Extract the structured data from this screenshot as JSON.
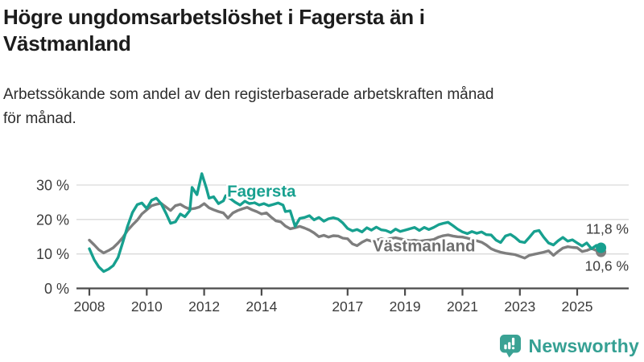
{
  "header": {
    "title_lines": [
      "Högre ungdomsarbetslöshet i Fagersta än i",
      "Västmanland"
    ],
    "subtitle_lines": [
      "Arbetssökande som andel av den registerbaserade arbetskraften månad",
      "för månad."
    ]
  },
  "chart_data": {
    "type": "line",
    "title": "Högre ungdomsarbetslöshet i Fagersta än i Västmanland",
    "subtitle": "Arbetssökande som andel av den registerbaserade arbetskraften månad för månad.",
    "xlabel": "",
    "ylabel": "",
    "unit": "%",
    "grid": "horizontal",
    "legend_position": "inline-labels",
    "xlim": [
      2007.55,
      2026.77
    ],
    "ylim": [
      0,
      35.5
    ],
    "x_axis": {
      "ticks": [
        2008,
        2010,
        2012,
        2014,
        2017,
        2019,
        2021,
        2023,
        2025
      ]
    },
    "y_axis": {
      "ticks": [
        {
          "value": 0,
          "label": "0 %"
        },
        {
          "value": 10,
          "label": "10 %"
        },
        {
          "value": 20,
          "label": "20 %"
        },
        {
          "value": 30,
          "label": "30 %"
        }
      ]
    },
    "colors": {
      "fagersta": "#17a08f",
      "vastmanland": "#7e7e7e",
      "axis": "#4b4b4b",
      "gridline": "#dadada",
      "tick_text": "#3c3c3c"
    },
    "series": [
      {
        "id": "fagersta",
        "name": "Fagersta",
        "color": "#17a08f",
        "label_color": "#17a08f",
        "end_value": 11.8,
        "end_label": "11,8 %",
        "end_label_dy": -17.5,
        "label_anchor": {
          "x": 2012.8,
          "y": 26.6
        },
        "points": [
          [
            2008.0,
            11.5
          ],
          [
            2008.17,
            8.3
          ],
          [
            2008.33,
            6.2
          ],
          [
            2008.5,
            4.9
          ],
          [
            2008.67,
            5.6
          ],
          [
            2008.83,
            6.6
          ],
          [
            2009.0,
            9.0
          ],
          [
            2009.17,
            13.5
          ],
          [
            2009.33,
            18.0
          ],
          [
            2009.5,
            22.0
          ],
          [
            2009.67,
            24.3
          ],
          [
            2009.83,
            24.8
          ],
          [
            2010.0,
            23.2
          ],
          [
            2010.17,
            25.6
          ],
          [
            2010.33,
            26.2
          ],
          [
            2010.5,
            24.6
          ],
          [
            2010.67,
            21.8
          ],
          [
            2010.83,
            18.9
          ],
          [
            2011.0,
            19.3
          ],
          [
            2011.17,
            21.6
          ],
          [
            2011.33,
            20.8
          ],
          [
            2011.5,
            22.6
          ],
          [
            2011.58,
            29.3
          ],
          [
            2011.75,
            27.2
          ],
          [
            2011.92,
            33.3
          ],
          [
            2012.08,
            29.0
          ],
          [
            2012.17,
            26.2
          ],
          [
            2012.33,
            26.6
          ],
          [
            2012.5,
            24.6
          ],
          [
            2012.67,
            25.4
          ],
          [
            2012.75,
            26.9
          ],
          [
            2012.92,
            26.0
          ],
          [
            2013.08,
            25.0
          ],
          [
            2013.25,
            24.2
          ],
          [
            2013.42,
            25.3
          ],
          [
            2013.58,
            24.6
          ],
          [
            2013.75,
            24.9
          ],
          [
            2013.92,
            24.2
          ],
          [
            2014.08,
            24.6
          ],
          [
            2014.25,
            24.0
          ],
          [
            2014.42,
            24.4
          ],
          [
            2014.58,
            24.8
          ],
          [
            2014.75,
            24.2
          ],
          [
            2014.83,
            22.3
          ],
          [
            2015.0,
            22.5
          ],
          [
            2015.17,
            18.0
          ],
          [
            2015.33,
            20.3
          ],
          [
            2015.5,
            20.6
          ],
          [
            2015.67,
            21.1
          ],
          [
            2015.83,
            19.9
          ],
          [
            2016.0,
            20.6
          ],
          [
            2016.17,
            19.5
          ],
          [
            2016.33,
            20.2
          ],
          [
            2016.5,
            20.5
          ],
          [
            2016.67,
            20.1
          ],
          [
            2016.83,
            19.0
          ],
          [
            2017.0,
            17.4
          ],
          [
            2017.17,
            16.7
          ],
          [
            2017.33,
            17.1
          ],
          [
            2017.5,
            16.4
          ],
          [
            2017.67,
            17.6
          ],
          [
            2017.83,
            16.9
          ],
          [
            2018.0,
            17.8
          ],
          [
            2018.17,
            17.0
          ],
          [
            2018.33,
            16.8
          ],
          [
            2018.5,
            16.2
          ],
          [
            2018.67,
            17.2
          ],
          [
            2018.83,
            16.5
          ],
          [
            2019.0,
            16.9
          ],
          [
            2019.17,
            17.3
          ],
          [
            2019.33,
            17.7
          ],
          [
            2019.5,
            16.8
          ],
          [
            2019.67,
            17.7
          ],
          [
            2019.83,
            17.1
          ],
          [
            2020.0,
            17.7
          ],
          [
            2020.17,
            18.5
          ],
          [
            2020.33,
            18.9
          ],
          [
            2020.5,
            19.2
          ],
          [
            2020.67,
            18.2
          ],
          [
            2020.83,
            17.2
          ],
          [
            2021.0,
            16.4
          ],
          [
            2021.17,
            15.9
          ],
          [
            2021.33,
            16.5
          ],
          [
            2021.5,
            16.0
          ],
          [
            2021.67,
            16.4
          ],
          [
            2021.83,
            15.6
          ],
          [
            2022.0,
            15.5
          ],
          [
            2022.17,
            14.0
          ],
          [
            2022.33,
            13.3
          ],
          [
            2022.5,
            15.2
          ],
          [
            2022.67,
            15.7
          ],
          [
            2022.83,
            14.8
          ],
          [
            2023.0,
            13.6
          ],
          [
            2023.17,
            13.3
          ],
          [
            2023.33,
            14.8
          ],
          [
            2023.5,
            16.5
          ],
          [
            2023.67,
            16.8
          ],
          [
            2023.83,
            14.9
          ],
          [
            2024.0,
            13.2
          ],
          [
            2024.17,
            12.6
          ],
          [
            2024.33,
            13.8
          ],
          [
            2024.5,
            14.8
          ],
          [
            2024.67,
            13.7
          ],
          [
            2024.83,
            14.1
          ],
          [
            2025.0,
            13.2
          ],
          [
            2025.17,
            12.3
          ],
          [
            2025.33,
            13.2
          ],
          [
            2025.5,
            11.5
          ],
          [
            2025.67,
            12.5
          ],
          [
            2025.83,
            11.8
          ]
        ]
      },
      {
        "id": "vastmanland",
        "name": "Västmanland",
        "color": "#7e7e7e",
        "label_color": "#6f6f6f",
        "end_value": 10.6,
        "end_label": "10,6 %",
        "end_label_dy": 23.5,
        "label_anchor": {
          "x": 2017.87,
          "y": 10.7
        },
        "points": [
          [
            2008.0,
            14.0
          ],
          [
            2008.17,
            12.6
          ],
          [
            2008.33,
            11.2
          ],
          [
            2008.5,
            10.3
          ],
          [
            2008.67,
            11.0
          ],
          [
            2008.83,
            11.8
          ],
          [
            2009.0,
            13.2
          ],
          [
            2009.17,
            14.8
          ],
          [
            2009.33,
            16.8
          ],
          [
            2009.5,
            18.4
          ],
          [
            2009.67,
            19.8
          ],
          [
            2009.83,
            21.6
          ],
          [
            2010.0,
            22.8
          ],
          [
            2010.17,
            24.0
          ],
          [
            2010.33,
            24.4
          ],
          [
            2010.5,
            24.7
          ],
          [
            2010.67,
            23.6
          ],
          [
            2010.83,
            22.6
          ],
          [
            2011.0,
            24.0
          ],
          [
            2011.17,
            24.4
          ],
          [
            2011.33,
            23.6
          ],
          [
            2011.5,
            23.0
          ],
          [
            2011.67,
            23.2
          ],
          [
            2011.83,
            23.6
          ],
          [
            2012.0,
            24.6
          ],
          [
            2012.17,
            23.4
          ],
          [
            2012.33,
            22.8
          ],
          [
            2012.5,
            22.3
          ],
          [
            2012.67,
            21.9
          ],
          [
            2012.83,
            20.4
          ],
          [
            2013.0,
            21.9
          ],
          [
            2013.17,
            22.6
          ],
          [
            2013.33,
            23.1
          ],
          [
            2013.5,
            23.5
          ],
          [
            2013.67,
            22.8
          ],
          [
            2013.83,
            22.3
          ],
          [
            2014.0,
            21.6
          ],
          [
            2014.17,
            21.9
          ],
          [
            2014.33,
            20.7
          ],
          [
            2014.5,
            19.6
          ],
          [
            2014.67,
            19.3
          ],
          [
            2014.83,
            18.1
          ],
          [
            2015.0,
            17.3
          ],
          [
            2015.17,
            17.6
          ],
          [
            2015.33,
            18.0
          ],
          [
            2015.5,
            17.5
          ],
          [
            2015.67,
            16.9
          ],
          [
            2015.83,
            16.1
          ],
          [
            2016.0,
            15.0
          ],
          [
            2016.17,
            15.4
          ],
          [
            2016.33,
            14.9
          ],
          [
            2016.5,
            15.3
          ],
          [
            2016.67,
            15.2
          ],
          [
            2016.83,
            14.6
          ],
          [
            2017.0,
            14.4
          ],
          [
            2017.17,
            12.9
          ],
          [
            2017.33,
            12.4
          ],
          [
            2017.5,
            13.4
          ],
          [
            2017.67,
            14.1
          ],
          [
            2017.83,
            13.7
          ],
          [
            2018.0,
            14.0
          ],
          [
            2018.17,
            14.4
          ],
          [
            2018.33,
            14.1
          ],
          [
            2018.5,
            14.5
          ],
          [
            2018.67,
            14.7
          ],
          [
            2018.83,
            14.4
          ],
          [
            2019.0,
            14.1
          ],
          [
            2019.17,
            13.8
          ],
          [
            2019.33,
            14.0
          ],
          [
            2019.5,
            13.7
          ],
          [
            2019.67,
            13.9
          ],
          [
            2019.83,
            14.0
          ],
          [
            2020.0,
            14.2
          ],
          [
            2020.17,
            14.9
          ],
          [
            2020.33,
            15.3
          ],
          [
            2020.5,
            15.5
          ],
          [
            2020.67,
            15.2
          ],
          [
            2020.83,
            15.0
          ],
          [
            2021.0,
            14.9
          ],
          [
            2021.17,
            14.6
          ],
          [
            2021.33,
            14.2
          ],
          [
            2021.5,
            13.8
          ],
          [
            2021.67,
            13.4
          ],
          [
            2021.83,
            12.6
          ],
          [
            2022.0,
            11.5
          ],
          [
            2022.17,
            10.9
          ],
          [
            2022.33,
            10.5
          ],
          [
            2022.5,
            10.2
          ],
          [
            2022.67,
            10.0
          ],
          [
            2022.83,
            9.8
          ],
          [
            2023.0,
            9.3
          ],
          [
            2023.17,
            8.8
          ],
          [
            2023.33,
            9.6
          ],
          [
            2023.5,
            9.9
          ],
          [
            2023.67,
            10.2
          ],
          [
            2023.83,
            10.5
          ],
          [
            2024.0,
            10.9
          ],
          [
            2024.17,
            9.6
          ],
          [
            2024.33,
            10.7
          ],
          [
            2024.5,
            11.7
          ],
          [
            2024.67,
            12.1
          ],
          [
            2024.83,
            11.9
          ],
          [
            2025.0,
            11.8
          ],
          [
            2025.17,
            10.7
          ],
          [
            2025.33,
            11.0
          ],
          [
            2025.5,
            11.6
          ],
          [
            2025.67,
            11.0
          ],
          [
            2025.83,
            10.6
          ]
        ]
      }
    ]
  },
  "branding": {
    "logo_text": "Newsworthy",
    "logo_icon": "bar-chart-speech-bubble-icon",
    "icon_color": "#3aa294",
    "text_color": "#35a093"
  }
}
